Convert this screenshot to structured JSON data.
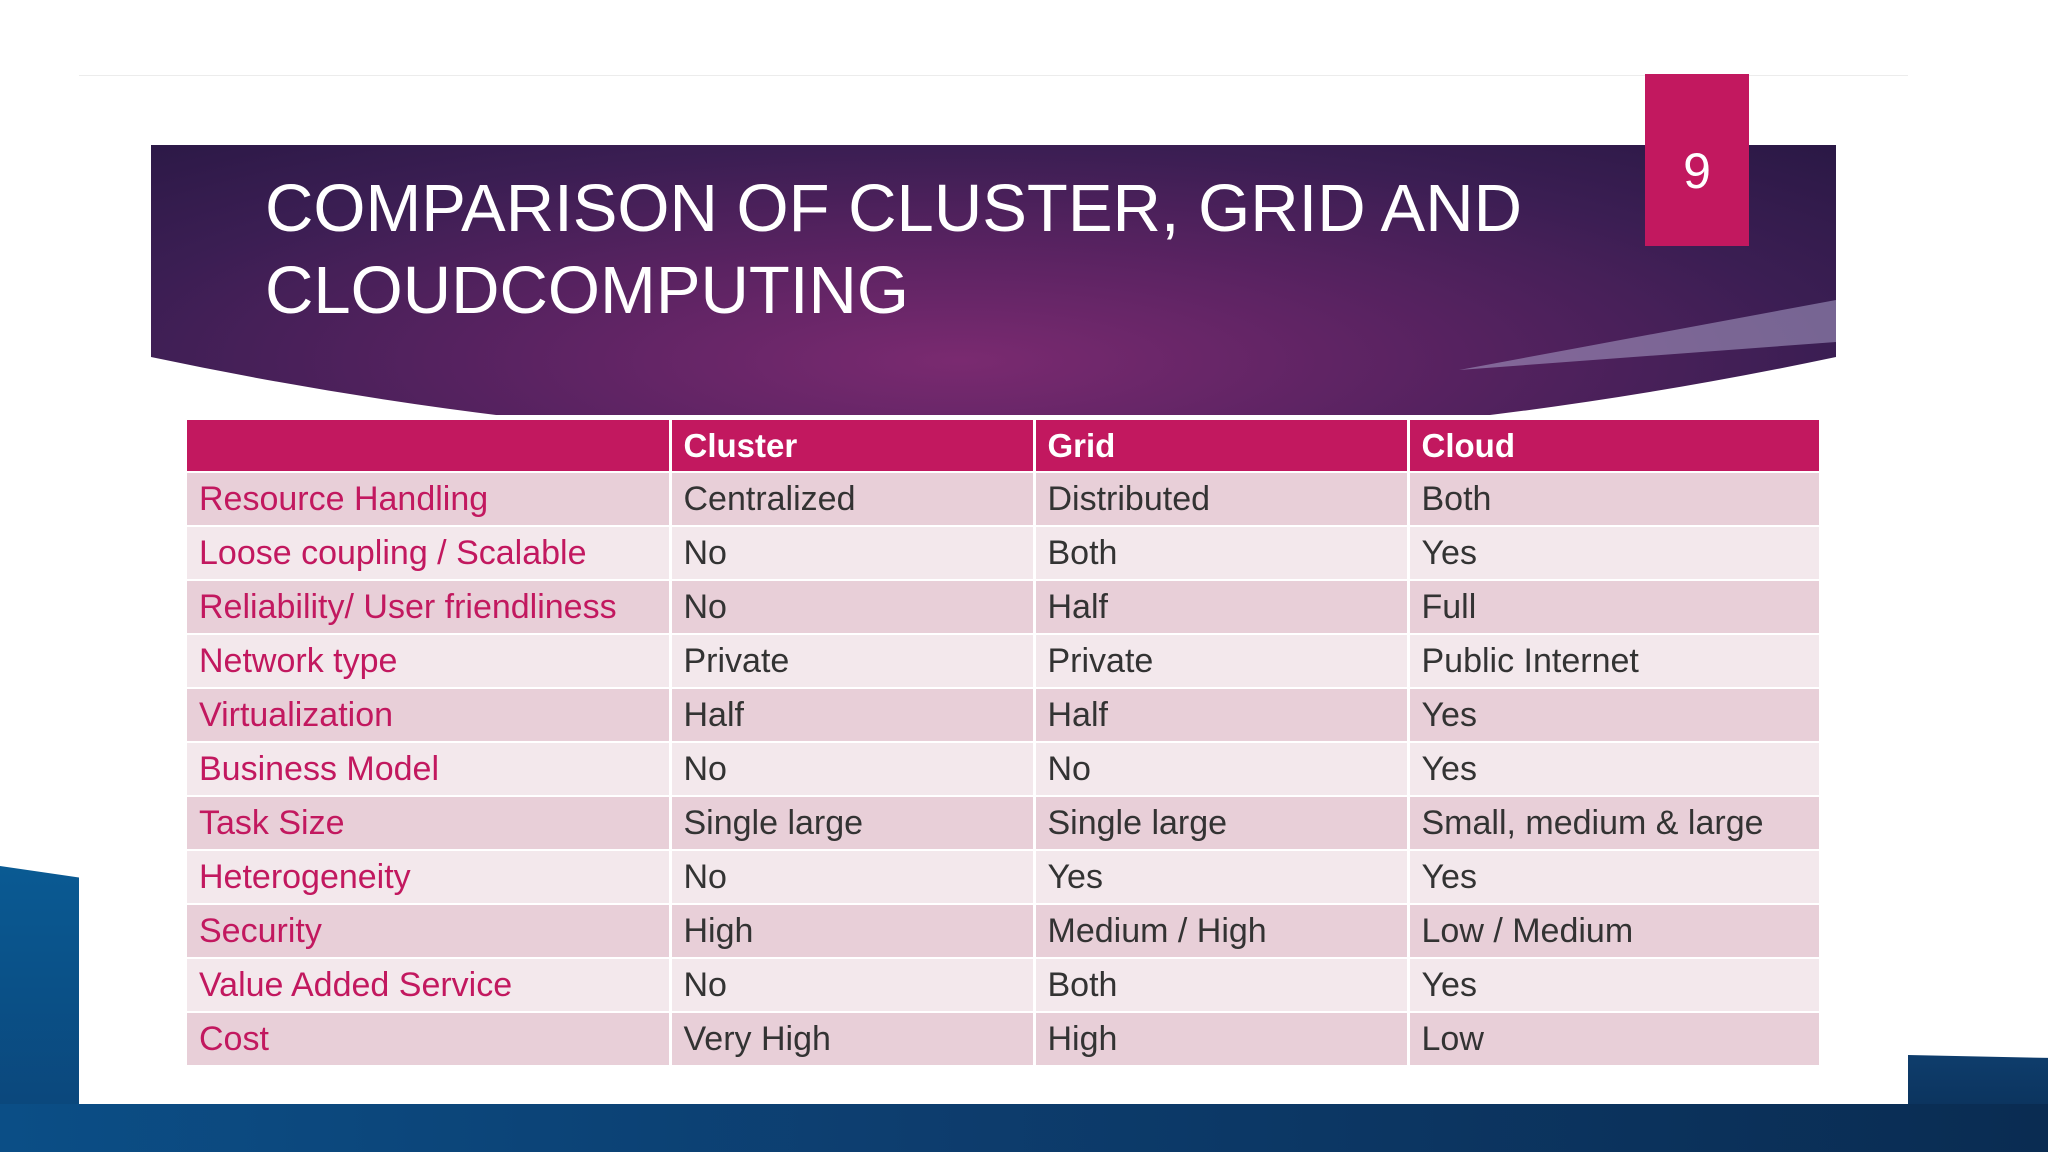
{
  "slide": {
    "title_line1": "COMPARISON OF CLUSTER, GRID AND",
    "title_line2": "CLOUDCOMPUTING",
    "number": "9"
  },
  "colors": {
    "accent": "#c2185f",
    "banner": "#4a1f5c",
    "frame": "#0b4478",
    "row_odd": "#e8cfd8",
    "row_even": "#f3e8ec"
  },
  "table": {
    "headers": [
      "",
      "Cluster",
      "Grid",
      "Cloud"
    ],
    "rows": [
      [
        "Resource Handling",
        "Centralized",
        "Distributed",
        "Both"
      ],
      [
        "Loose coupling / Scalable",
        "No",
        "Both",
        "Yes"
      ],
      [
        "Reliability/ User friendliness",
        "No",
        "Half",
        "Full"
      ],
      [
        "Network type",
        "Private",
        "Private",
        "Public Internet"
      ],
      [
        "Virtualization",
        "Half",
        "Half",
        "Yes"
      ],
      [
        "Business Model",
        "No",
        "No",
        "Yes"
      ],
      [
        "Task Size",
        "Single large",
        "Single large",
        "Small, medium & large"
      ],
      [
        "Heterogeneity",
        "No",
        "Yes",
        "Yes"
      ],
      [
        "Security",
        "High",
        "Medium / High",
        "Low / Medium"
      ],
      [
        "Value Added Service",
        "No",
        "Both",
        "Yes"
      ],
      [
        "Cost",
        "Very High",
        "High",
        "Low"
      ]
    ]
  }
}
